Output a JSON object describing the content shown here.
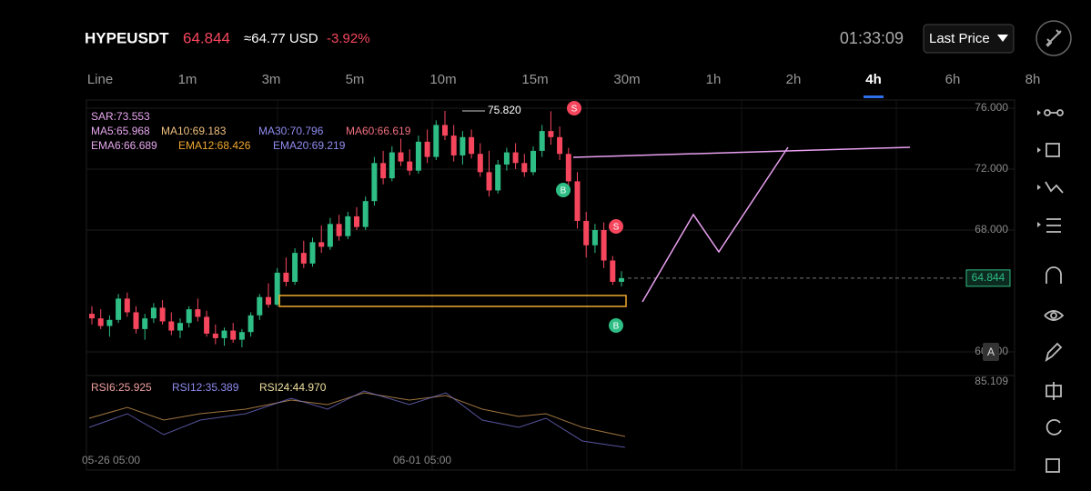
{
  "header": {
    "symbol": "HYPEUSDT",
    "price": "64.844",
    "usd": "≈64.77 USD",
    "change": "-3.92%",
    "clock": "01:33:09",
    "price_type": "Last Price"
  },
  "timeframes": {
    "items": [
      "Line",
      "1m",
      "3m",
      "5m",
      "10m",
      "15m",
      "30m",
      "1h",
      "2h",
      "4h",
      "6h",
      "8h"
    ],
    "active_index": 9
  },
  "indicators": {
    "row1": [
      "SAR:73.553"
    ],
    "row2": [
      "MA5:65.968",
      "MA10:69.183",
      "MA30:70.796",
      "MA60:66.619"
    ],
    "row3": [
      "EMA6:66.689",
      "EMA12:68.426",
      "EMA20:69.219"
    ],
    "rsi": [
      "RSI6:25.925",
      "RSI12:35.389",
      "RSI24:44.970"
    ]
  },
  "chart": {
    "yticks": [
      {
        "value": 76,
        "label": "76.000"
      },
      {
        "value": 72,
        "label": "72.000"
      },
      {
        "value": 68,
        "label": "68.000"
      },
      {
        "value": 60,
        "label": "60.000"
      }
    ],
    "last": {
      "value": 64.844,
      "label": "64.844"
    },
    "high": {
      "value": 75.82,
      "label": "75.820"
    },
    "rsi_top": "85.109",
    "dates": [
      "05-26 05:00",
      "06-01 05:00"
    ],
    "auto_button": "A",
    "candles": [
      [
        62.5,
        63,
        61.8,
        62.2
      ],
      [
        62.2,
        62.8,
        61.5,
        61.7
      ],
      [
        61.7,
        62.4,
        61,
        62.1
      ],
      [
        62.1,
        63.8,
        61.9,
        63.5
      ],
      [
        63.5,
        63.9,
        62.3,
        62.6
      ],
      [
        62.6,
        63,
        61.2,
        61.5
      ],
      [
        61.5,
        62.5,
        60.8,
        62.2
      ],
      [
        62.2,
        63.2,
        61.9,
        62.9
      ],
      [
        62.9,
        63.4,
        61.8,
        62
      ],
      [
        62,
        62.6,
        61.1,
        61.4
      ],
      [
        61.4,
        62.2,
        60.9,
        61.9
      ],
      [
        61.9,
        63,
        61.6,
        62.8
      ],
      [
        62.8,
        63.5,
        62,
        62.3
      ],
      [
        62.3,
        62.7,
        61,
        61.2
      ],
      [
        61.2,
        61.8,
        60.5,
        60.9
      ],
      [
        60.9,
        61.6,
        60.4,
        61.4
      ],
      [
        61.4,
        61.9,
        60.6,
        60.8
      ],
      [
        60.8,
        61.5,
        60.3,
        61.3
      ],
      [
        61.3,
        62.6,
        61,
        62.4
      ],
      [
        62.4,
        63.8,
        62.1,
        63.6
      ],
      [
        63.6,
        64.5,
        62.9,
        63.1
      ],
      [
        63.1,
        65.5,
        63,
        65.2
      ],
      [
        65.2,
        66.2,
        64.3,
        64.6
      ],
      [
        64.6,
        66.8,
        64.4,
        66.5
      ],
      [
        66.5,
        67.3,
        65.5,
        65.8
      ],
      [
        65.8,
        67.5,
        65.6,
        67.2
      ],
      [
        67.2,
        68.3,
        66.5,
        66.9
      ],
      [
        66.9,
        68.8,
        66.7,
        68.4
      ],
      [
        68.4,
        69,
        67.3,
        67.6
      ],
      [
        67.6,
        69.2,
        67.4,
        68.9
      ],
      [
        68.9,
        69.5,
        68,
        68.2
      ],
      [
        68.2,
        70.2,
        68,
        69.9
      ],
      [
        69.9,
        72.8,
        69.6,
        72.4
      ],
      [
        72.4,
        73.2,
        71,
        71.4
      ],
      [
        71.4,
        73.5,
        71.2,
        73.1
      ],
      [
        73.1,
        74,
        72.2,
        72.5
      ],
      [
        72.5,
        73.3,
        71.6,
        71.9
      ],
      [
        71.9,
        74.2,
        71.7,
        73.8
      ],
      [
        73.8,
        74.6,
        72.4,
        72.8
      ],
      [
        72.8,
        75.2,
        72.6,
        74.9
      ],
      [
        74.9,
        75.82,
        73.9,
        74.2
      ],
      [
        74.2,
        74.9,
        72.5,
        72.9
      ],
      [
        72.9,
        74.5,
        72.3,
        74.1
      ],
      [
        74.1,
        74.6,
        72.7,
        73
      ],
      [
        73,
        73.7,
        71.5,
        71.8
      ],
      [
        71.8,
        73.2,
        70.2,
        70.6
      ],
      [
        70.6,
        72.6,
        70.4,
        72.3
      ],
      [
        72.3,
        73.4,
        71.9,
        73.1
      ],
      [
        73.1,
        73.7,
        72,
        72.4
      ],
      [
        72.4,
        73,
        71.5,
        71.8
      ],
      [
        71.8,
        73.5,
        71.6,
        73.2
      ],
      [
        73.2,
        74.9,
        72.8,
        74.5
      ],
      [
        74.5,
        75.8,
        73.6,
        74.1
      ],
      [
        74.1,
        74.8,
        72.6,
        73
      ],
      [
        73,
        73.4,
        70.8,
        71.2
      ],
      [
        71.2,
        71.8,
        68.1,
        68.6
      ],
      [
        68.6,
        69.2,
        66.2,
        67
      ],
      [
        67,
        68.4,
        66.5,
        68
      ],
      [
        68,
        68.5,
        65.5,
        66
      ],
      [
        66,
        66.3,
        64.4,
        64.6
      ],
      [
        64.6,
        65.3,
        64.3,
        64.844
      ]
    ]
  }
}
